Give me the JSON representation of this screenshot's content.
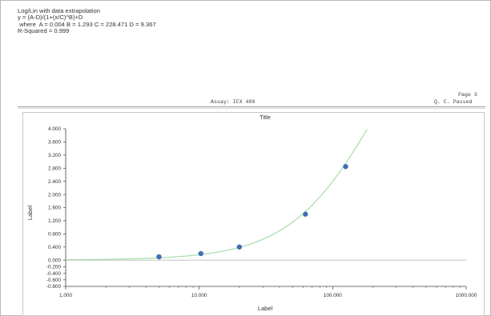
{
  "header": {
    "line1": "Log/Lin with data extrapolation",
    "line2": "y = (A-D)/(1+(x/C)^B)+D",
    "line3": " where  A = 0.004 B = 1.293 C = 228.471 D = 9.367",
    "line4": "R-Squared = 0.999"
  },
  "report": {
    "page": "Page 3",
    "assay": "Assay: IFX 400",
    "status": "Q. C. Passed"
  },
  "colors": {
    "curve": "#a8dca8",
    "points": "#3f6fb5",
    "axis": "#444444",
    "zero_line": "#bbbbbb"
  },
  "chart_data": {
    "type": "scatter",
    "title": "Title",
    "xlabel": "Label",
    "ylabel": "Label",
    "x_scale": "log",
    "xlim": [
      1,
      1000
    ],
    "ylim": [
      -0.8,
      4.0
    ],
    "x_ticks": [
      1,
      10,
      100,
      1000
    ],
    "x_tick_labels": [
      "1.000",
      "10.000",
      "100.000",
      "1000.000"
    ],
    "y_ticks": [
      -0.8,
      -0.6,
      -0.4,
      -0.2,
      0,
      0.4,
      0.8,
      1.2,
      1.6,
      2.0,
      2.4,
      2.8,
      3.2,
      3.6,
      4.0
    ],
    "y_tick_labels": [
      "-0.800",
      "-0.600",
      "-0.400",
      "-0.200",
      "0.000",
      "0.400",
      "0.800",
      "1.200",
      "1.600",
      "2.000",
      "2.400",
      "2.800",
      "3.200",
      "3.600",
      "4.000"
    ],
    "grid": false,
    "series": [
      {
        "mode": "markers",
        "x": [
          5.0,
          10.3,
          20.0,
          62.5,
          125.0
        ],
        "y": [
          0.1,
          0.2,
          0.4,
          1.4,
          2.85
        ]
      },
      {
        "mode": "curve",
        "model": {
          "A": 0.004,
          "B": 1.293,
          "C": 228.471,
          "D": 9.367
        }
      }
    ]
  }
}
